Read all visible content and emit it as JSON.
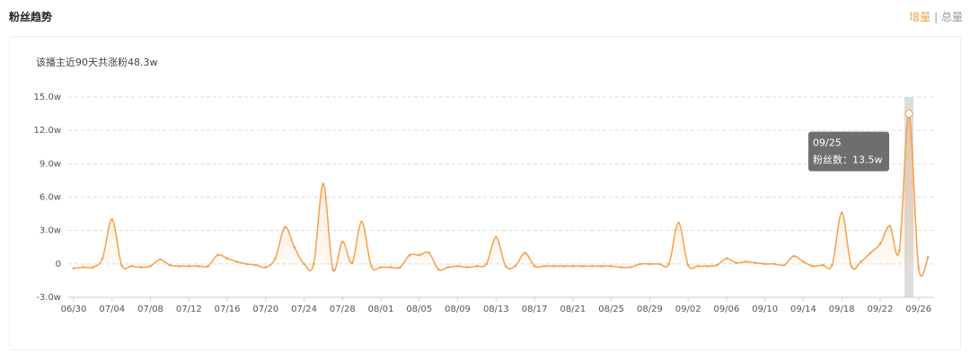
{
  "header": {
    "title": "粉丝趋势",
    "toggle": [
      "增量",
      "总量"
    ],
    "separator": "|"
  },
  "chart_data": {
    "type": "line",
    "subtitle": "该播主近90天共涨粉48.3w",
    "categories": [
      "06/30",
      null,
      null,
      null,
      "07/04",
      null,
      null,
      null,
      "07/08",
      null,
      null,
      null,
      "07/12",
      null,
      null,
      null,
      "07/16",
      null,
      null,
      null,
      "07/20",
      null,
      null,
      null,
      "07/24",
      null,
      null,
      null,
      "07/28",
      null,
      null,
      null,
      "08/01",
      null,
      null,
      null,
      "08/05",
      null,
      null,
      null,
      "08/09",
      null,
      null,
      null,
      "08/13",
      null,
      null,
      null,
      "08/17",
      null,
      null,
      null,
      "08/21",
      null,
      null,
      null,
      "08/25",
      null,
      null,
      null,
      "08/29",
      null,
      null,
      null,
      "09/02",
      null,
      null,
      null,
      "09/06",
      null,
      null,
      null,
      "09/10",
      null,
      null,
      null,
      "09/14",
      null,
      null,
      null,
      "09/18",
      null,
      null,
      null,
      "09/22",
      null,
      null,
      null,
      "09/26",
      null
    ],
    "series": [
      {
        "name": "粉丝数",
        "color": "#f5a04a",
        "values": [
          -0.4,
          -0.3,
          -0.3,
          0.5,
          4.0,
          -0.1,
          -0.2,
          -0.3,
          -0.2,
          0.4,
          -0.1,
          -0.2,
          -0.2,
          -0.2,
          -0.2,
          0.8,
          0.5,
          0.2,
          0.0,
          -0.1,
          -0.3,
          0.5,
          3.3,
          1.5,
          0.0,
          0.0,
          7.2,
          -0.5,
          2.0,
          0.1,
          3.8,
          -0.2,
          -0.3,
          -0.3,
          -0.3,
          0.8,
          0.8,
          1.0,
          -0.5,
          -0.3,
          -0.2,
          -0.3,
          -0.2,
          0.0,
          2.4,
          -0.2,
          -0.2,
          1.0,
          -0.2,
          -0.2,
          -0.2,
          -0.2,
          -0.2,
          -0.2,
          -0.2,
          -0.2,
          -0.2,
          -0.3,
          -0.3,
          0.0,
          0.0,
          0.0,
          0.0,
          3.7,
          -0.1,
          -0.2,
          -0.2,
          -0.1,
          0.5,
          0.1,
          0.2,
          0.1,
          0.0,
          0.0,
          -0.1,
          0.7,
          0.2,
          -0.2,
          -0.1,
          -0.1,
          4.6,
          -0.2,
          0.2,
          1.0,
          1.8,
          3.4,
          1.2,
          13.5,
          -0.3,
          0.6
        ]
      }
    ],
    "ylim": [
      -3,
      15
    ],
    "yticks": [
      {
        "value": -3,
        "label": "-3.0w"
      },
      0,
      {
        "value": 3,
        "label": "3.0w"
      },
      {
        "value": 6,
        "label": "6.0w"
      },
      {
        "value": 9,
        "label": "9.0w"
      },
      {
        "value": 12,
        "label": "12.0w"
      },
      {
        "value": 15,
        "label": "15.0w"
      }
    ],
    "grid": true,
    "highlight_index": 87,
    "tooltip": {
      "title": "09/25",
      "label": "粉丝数：13.5w"
    }
  }
}
